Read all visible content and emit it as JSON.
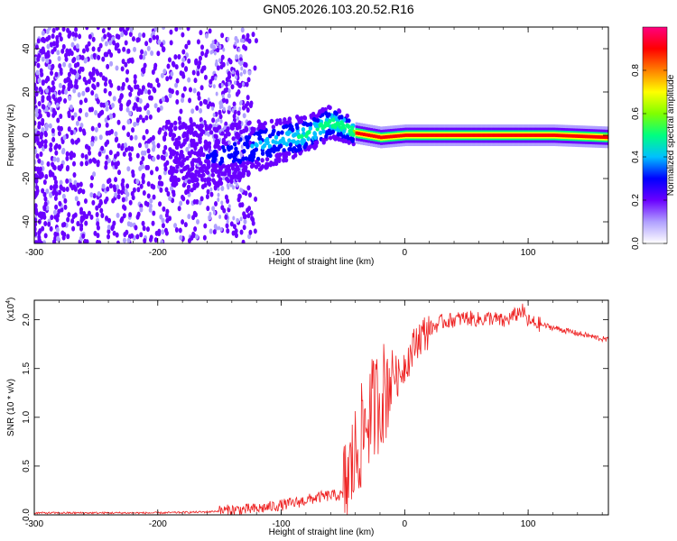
{
  "title": "GN05.2026.103.20.52.R16",
  "chart_data": [
    {
      "type": "heatmap",
      "panel": "spectrogram",
      "xlabel": "Height of straight line (km)",
      "ylabel": "Frequency (Hz)",
      "xlim": [
        -300,
        165
      ],
      "ylim": [
        -50,
        50
      ],
      "x_ticks": [
        -300,
        -200,
        -100,
        0,
        100
      ],
      "x_tick_labels": [
        "-300",
        "-200",
        "-100",
        "0",
        "100"
      ],
      "y_ticks": [
        -40,
        -20,
        0,
        20,
        40
      ],
      "y_tick_labels": [
        "-40",
        "-20",
        "0",
        "20",
        "40"
      ],
      "colorbar": {
        "label": "Normalized spectral amplitude",
        "range": [
          0,
          1
        ],
        "ticks": [
          0.0,
          0.2,
          0.4,
          0.6,
          0.8
        ],
        "tick_labels": [
          "0.0",
          "0.2",
          "0.4",
          "0.6",
          "0.8"
        ],
        "colors": [
          "#ffffff",
          "#b0a0ff",
          "#6a00ff",
          "#0000ff",
          "#00c0ff",
          "#00ff80",
          "#80ff00",
          "#ffff00",
          "#ff8000",
          "#ff0000",
          "#ff0080"
        ]
      },
      "ridge": {
        "x": [
          -150,
          -120,
          -100,
          -80,
          -70,
          -60,
          -50,
          -40,
          -30,
          -20,
          0,
          40,
          80,
          100,
          120,
          165
        ],
        "freq_hz": [
          -10,
          -5,
          -2,
          0,
          3,
          6,
          4,
          1,
          0,
          -1,
          0,
          0,
          0,
          0,
          0,
          -1
        ]
      }
    },
    {
      "type": "line",
      "panel": "snr",
      "xlabel": "Height of straight line (km)",
      "ylabel": "SNR (10 * v/v)",
      "scale_label": "(x10",
      "scale_exponent": "4",
      "xlim": [
        -300,
        165
      ],
      "ylim": [
        0,
        2.2
      ],
      "x_ticks": [
        -300,
        -200,
        -100,
        0,
        100
      ],
      "x_tick_labels": [
        "-300",
        "-200",
        "-100",
        "0",
        "100"
      ],
      "y_ticks": [
        0.0,
        0.5,
        1.0,
        1.5,
        2.0
      ],
      "y_tick_labels": [
        "0.0",
        "0.5",
        "1.0",
        "1.5",
        "2.0"
      ],
      "series": [
        {
          "name": "SNR",
          "color": "#ee2222",
          "x": [
            -300,
            -200,
            -160,
            -140,
            -120,
            -110,
            -100,
            -90,
            -80,
            -70,
            -60,
            -50,
            -45,
            -40,
            -35,
            -30,
            -25,
            -20,
            -15,
            -10,
            -5,
            0,
            5,
            10,
            20,
            30,
            40,
            50,
            60,
            70,
            80,
            90,
            95,
            100,
            110,
            120,
            140,
            165
          ],
          "y": [
            0.02,
            0.02,
            0.03,
            0.05,
            0.06,
            0.08,
            0.1,
            0.12,
            0.15,
            0.18,
            0.2,
            0.2,
            0.4,
            0.6,
            0.8,
            1.0,
            1.1,
            1.2,
            1.3,
            1.5,
            1.4,
            1.55,
            1.65,
            1.8,
            1.9,
            1.98,
            2.0,
            2.02,
            2.0,
            2.02,
            1.98,
            2.05,
            2.1,
            1.98,
            1.95,
            1.92,
            1.86,
            1.79
          ]
        }
      ]
    }
  ]
}
